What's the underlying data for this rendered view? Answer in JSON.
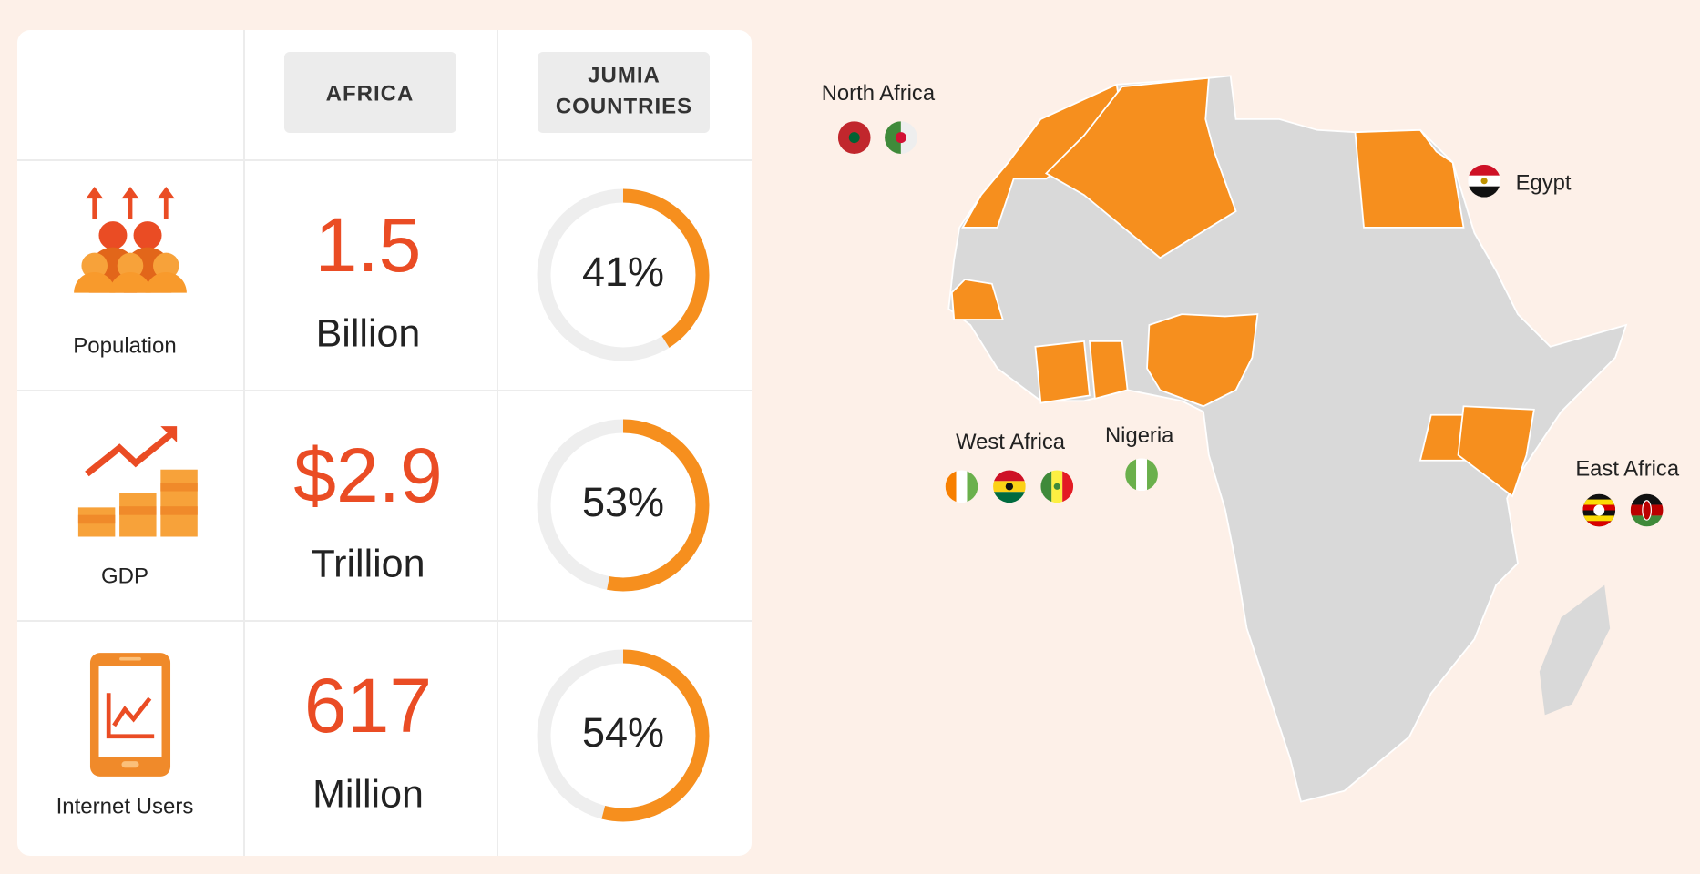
{
  "header": {
    "africa": "AFRICA",
    "jumia": [
      "JUMIA",
      "COUNTRIES"
    ]
  },
  "rows": [
    {
      "label": "Population",
      "value": "1.5",
      "unit": "Billion",
      "share": 41,
      "share_label": "41%"
    },
    {
      "label": "GDP",
      "value": "$2.9",
      "unit": "Trillion",
      "share": 53,
      "share_label": "53%"
    },
    {
      "label": "Internet Users",
      "value": "617",
      "unit": "Million",
      "share": 54,
      "share_label": "54%"
    }
  ],
  "map": {
    "regions": [
      "North Africa",
      "Egypt",
      "West Africa",
      "Nigeria",
      "East Africa"
    ]
  }
}
